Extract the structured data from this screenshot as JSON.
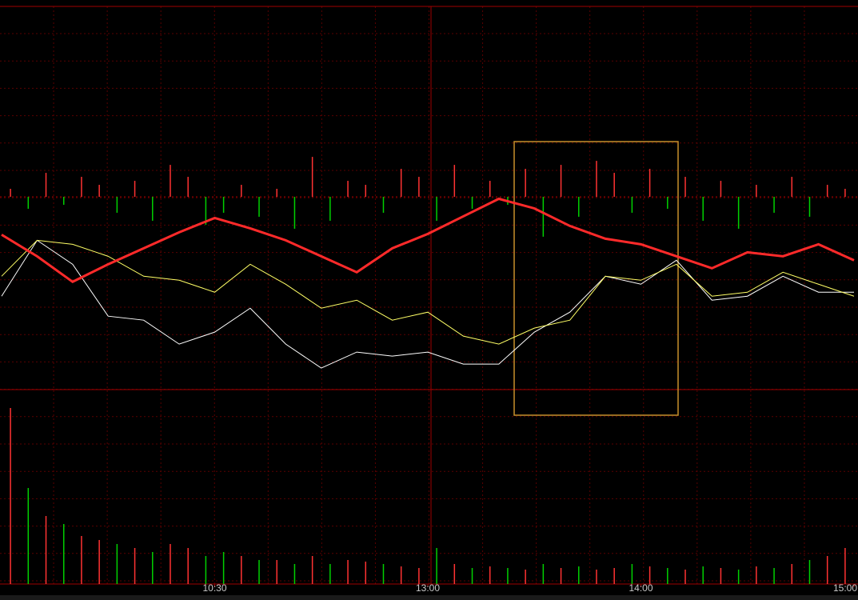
{
  "chart_data": {
    "type": "intraday",
    "xlim": [
      0,
      240
    ],
    "xticks": [
      {
        "value": 60,
        "label": "10:30"
      },
      {
        "value": 120,
        "label": "13:00"
      },
      {
        "value": 180,
        "label": "14:00"
      },
      {
        "value": 240,
        "label": "15:00"
      }
    ],
    "ylim": [
      0,
      480
    ],
    "x": [
      0,
      10,
      20,
      30,
      40,
      50,
      60,
      70,
      80,
      90,
      100,
      110,
      120,
      130,
      140,
      150,
      160,
      170,
      180,
      190,
      200,
      210,
      220,
      230,
      240
    ],
    "series": [
      {
        "color": "#ffffff",
        "values": [
          117,
          187,
          157,
          92,
          87,
          57,
          72,
          102,
          57,
          27,
          47,
          42,
          47,
          32,
          32,
          72,
          97,
          142,
          132,
          162,
          112,
          117,
          142,
          122,
          122
        ]
      },
      {
        "color": "#ffff66",
        "values": [
          142,
          187,
          182,
          167,
          142,
          137,
          122,
          157,
          132,
          102,
          112,
          87,
          97,
          67,
          57,
          77,
          87,
          142,
          137,
          157,
          117,
          122,
          147,
          132,
          117
        ]
      },
      {
        "color": "#ff2a2a",
        "values": [
          194,
          167,
          135,
          157,
          177,
          197,
          215,
          202,
          187,
          167,
          147,
          177,
          195,
          217,
          239,
          227,
          205,
          189,
          182,
          167,
          152,
          172,
          167,
          182,
          162
        ]
      }
    ],
    "bar_x": [
      2.5,
      7.5,
      12.5,
      17.5,
      22.5,
      27.5,
      32.5,
      37.5,
      42.5,
      47.5,
      52.5,
      57.5,
      62.5,
      67.5,
      72.5,
      77.5,
      82.5,
      87.5,
      92.5,
      97.5,
      102.5,
      107.5,
      112.5,
      117.5,
      122.5,
      127.5,
      132.5,
      137.5,
      142.5,
      147.5,
      152.5,
      157.5,
      162.5,
      167.5,
      172.5,
      177.5,
      182.5,
      187.5,
      192.5,
      197.5,
      202.5,
      207.5,
      212.5,
      217.5,
      222.5,
      227.5,
      232.5,
      237.5
    ],
    "flow": {
      "up_color": "#ff3232",
      "down_color": "#00d000",
      "values": [
        10,
        -15,
        30,
        -10,
        25,
        15,
        -20,
        20,
        -30,
        40,
        25,
        -35,
        -20,
        15,
        -25,
        10,
        -40,
        50,
        -30,
        20,
        15,
        -20,
        35,
        25,
        -30,
        40,
        -15,
        20,
        -10,
        35,
        -50,
        40,
        -25,
        45,
        30,
        -20,
        35,
        -15,
        25,
        -30,
        20,
        -40,
        15,
        -20,
        25,
        -25,
        15,
        10
      ]
    },
    "volume": {
      "ylim": [
        0,
        243
      ],
      "values": [
        220,
        120,
        85,
        75,
        60,
        55,
        50,
        45,
        40,
        50,
        45,
        35,
        40,
        35,
        30,
        30,
        25,
        35,
        25,
        30,
        28,
        25,
        22,
        20,
        45,
        25,
        20,
        22,
        20,
        18,
        25,
        20,
        22,
        18,
        20,
        25,
        22,
        20,
        18,
        22,
        20,
        18,
        22,
        20,
        25,
        30,
        35,
        45
      ]
    }
  }
}
